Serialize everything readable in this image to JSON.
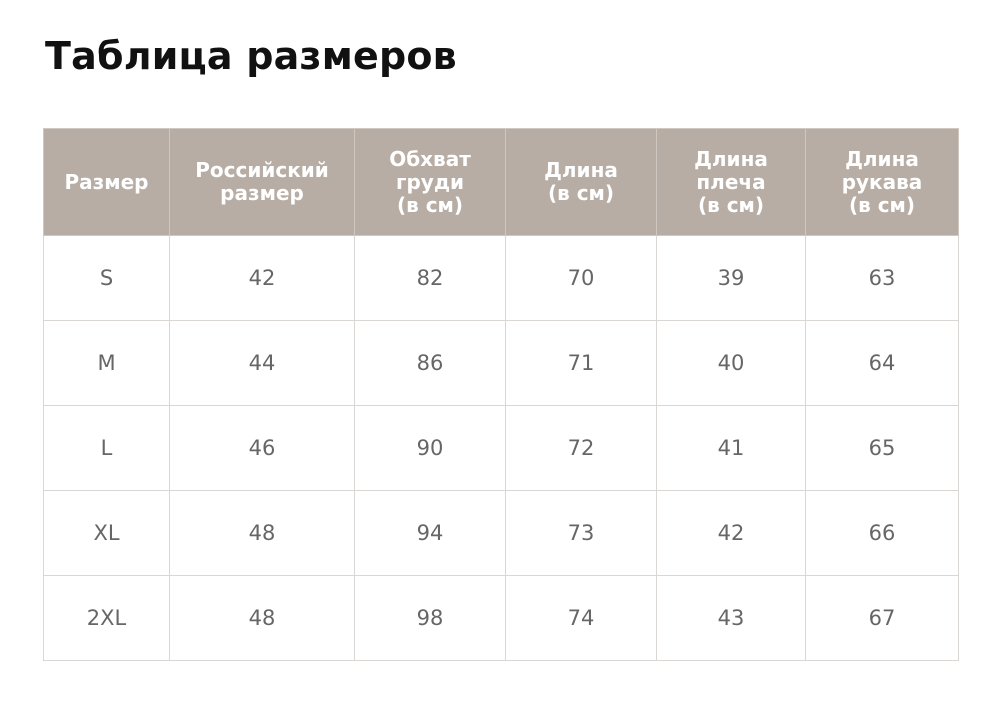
{
  "header": {
    "title": "Таблица размеров"
  },
  "table": {
    "columns": [
      [
        "Размер"
      ],
      [
        "Российский",
        "размер"
      ],
      [
        "Обхват",
        "груди",
        "(в см)"
      ],
      [
        "Длина",
        "(в см)"
      ],
      [
        "Длина",
        "плеча",
        "(в см)"
      ],
      [
        "Длина",
        "рукава",
        "(в см)"
      ]
    ],
    "rows": [
      [
        "S",
        42,
        82,
        70,
        39,
        63
      ],
      [
        "M",
        44,
        86,
        71,
        40,
        64
      ],
      [
        "L",
        46,
        90,
        72,
        41,
        65
      ],
      [
        "XL",
        48,
        94,
        73,
        42,
        66
      ],
      [
        "2XL",
        48,
        98,
        74,
        43,
        67
      ]
    ]
  }
}
